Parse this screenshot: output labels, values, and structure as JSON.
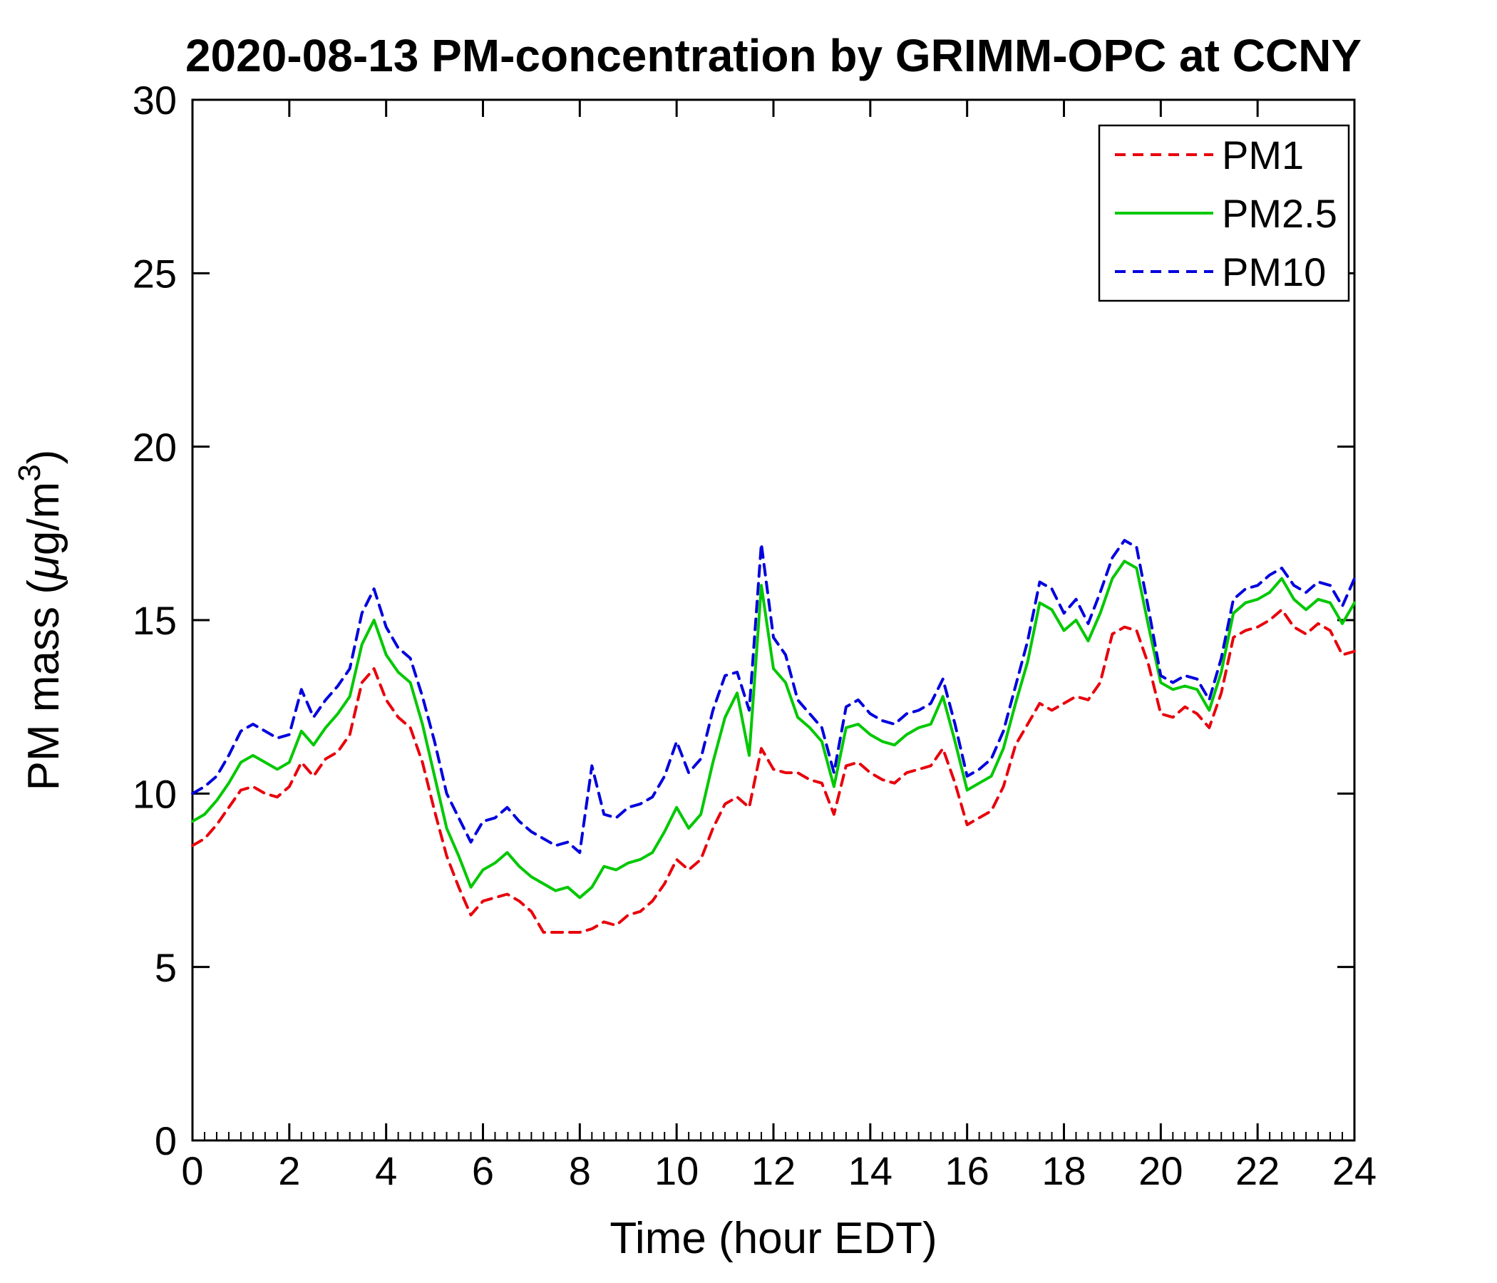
{
  "figure": {
    "background": "#ffffff",
    "axis_color": "#000000"
  },
  "chart_data": {
    "type": "line",
    "title": "2020-08-13 PM-concentration by GRIMM-OPC at CCNY",
    "xlabel": "Time (hour EDT)",
    "ylabel_parts": {
      "prefix": "PM mass (",
      "mu": "μ",
      "mid": "g/m",
      "sup": "3",
      "suffix": ")"
    },
    "xlim": [
      0,
      24
    ],
    "ylim": [
      0,
      30
    ],
    "x_ticks": [
      0,
      2,
      4,
      6,
      8,
      10,
      12,
      14,
      16,
      18,
      20,
      22,
      24
    ],
    "y_ticks": [
      0,
      5,
      10,
      15,
      20,
      25,
      30
    ],
    "x_minor_step": 0.25,
    "grid": false,
    "legend": {
      "position": "top-right",
      "entries": [
        {
          "label": "PM1",
          "color": "#e8000b",
          "dash": true
        },
        {
          "label": "PM2.5",
          "color": "#00c800",
          "dash": false
        },
        {
          "label": "PM10",
          "color": "#0000dd",
          "dash": true
        }
      ]
    },
    "x": [
      0,
      0.25,
      0.5,
      0.75,
      1,
      1.25,
      1.5,
      1.75,
      2,
      2.25,
      2.5,
      2.75,
      3,
      3.25,
      3.5,
      3.75,
      4,
      4.25,
      4.5,
      4.75,
      5,
      5.25,
      5.5,
      5.75,
      6,
      6.25,
      6.5,
      6.75,
      7,
      7.25,
      7.5,
      7.75,
      8,
      8.25,
      8.5,
      8.75,
      9,
      9.25,
      9.5,
      9.75,
      10,
      10.25,
      10.5,
      10.75,
      11,
      11.25,
      11.5,
      11.75,
      12,
      12.25,
      12.5,
      12.75,
      13,
      13.25,
      13.5,
      13.75,
      14,
      14.25,
      14.5,
      14.75,
      15,
      15.25,
      15.5,
      15.75,
      16,
      16.25,
      16.5,
      16.75,
      17,
      17.25,
      17.5,
      17.75,
      18,
      18.25,
      18.5,
      18.75,
      19,
      19.25,
      19.5,
      19.75,
      20,
      20.25,
      20.5,
      20.75,
      21,
      21.25,
      21.5,
      21.75,
      22,
      22.25,
      22.5,
      22.75,
      23,
      23.25,
      23.5,
      23.75,
      24
    ],
    "series": [
      {
        "name": "PM1",
        "values": [
          8.5,
          8.7,
          9.1,
          9.6,
          10.1,
          10.2,
          10.0,
          9.9,
          10.2,
          10.9,
          10.5,
          11.0,
          11.2,
          11.7,
          13.2,
          13.6,
          12.7,
          12.2,
          11.9,
          10.9,
          9.5,
          8.2,
          7.3,
          6.5,
          6.9,
          7.0,
          7.1,
          6.9,
          6.6,
          6.0,
          6.0,
          6.0,
          6.0,
          6.1,
          6.3,
          6.2,
          6.5,
          6.6,
          6.9,
          7.4,
          8.1,
          7.8,
          8.1,
          9.0,
          9.7,
          9.9,
          9.6,
          11.3,
          10.7,
          10.6,
          10.6,
          10.4,
          10.3,
          9.4,
          10.8,
          10.9,
          10.6,
          10.4,
          10.3,
          10.6,
          10.7,
          10.8,
          11.3,
          10.3,
          9.1,
          9.3,
          9.5,
          10.2,
          11.4,
          12.0,
          12.6,
          12.4,
          12.6,
          12.8,
          12.7,
          13.2,
          14.6,
          14.8,
          14.7,
          13.7,
          12.3,
          12.2,
          12.5,
          12.3,
          11.9,
          12.9,
          14.5,
          14.7,
          14.8,
          15.0,
          15.3,
          14.8,
          14.6,
          14.9,
          14.7,
          14.0,
          14.1
        ]
      },
      {
        "name": "PM2.5",
        "values": [
          9.2,
          9.4,
          9.8,
          10.3,
          10.9,
          11.1,
          10.9,
          10.7,
          10.9,
          11.8,
          11.4,
          11.9,
          12.3,
          12.8,
          14.3,
          15.0,
          14.0,
          13.5,
          13.2,
          12.0,
          10.5,
          9.0,
          8.2,
          7.3,
          7.8,
          8.0,
          8.3,
          7.9,
          7.6,
          7.4,
          7.2,
          7.3,
          7.0,
          7.3,
          7.9,
          7.8,
          8.0,
          8.1,
          8.3,
          8.9,
          9.6,
          9.0,
          9.4,
          10.9,
          12.2,
          12.9,
          11.1,
          16.0,
          13.6,
          13.2,
          12.2,
          11.9,
          11.5,
          10.2,
          11.9,
          12.0,
          11.7,
          11.5,
          11.4,
          11.7,
          11.9,
          12.0,
          12.8,
          11.5,
          10.1,
          10.3,
          10.5,
          11.3,
          12.6,
          13.8,
          15.5,
          15.3,
          14.7,
          15.0,
          14.4,
          15.2,
          16.2,
          16.7,
          16.5,
          14.8,
          13.2,
          13.0,
          13.1,
          13.0,
          12.4,
          13.5,
          15.2,
          15.5,
          15.6,
          15.8,
          16.2,
          15.6,
          15.3,
          15.6,
          15.5,
          14.9,
          15.5
        ]
      },
      {
        "name": "PM10",
        "values": [
          10.0,
          10.2,
          10.5,
          11.1,
          11.8,
          12.0,
          11.8,
          11.6,
          11.7,
          13.0,
          12.2,
          12.7,
          13.1,
          13.6,
          15.2,
          15.9,
          14.8,
          14.2,
          13.9,
          12.8,
          11.5,
          10.0,
          9.3,
          8.6,
          9.2,
          9.3,
          9.6,
          9.2,
          8.9,
          8.7,
          8.5,
          8.6,
          8.3,
          10.8,
          9.4,
          9.3,
          9.6,
          9.7,
          9.9,
          10.5,
          11.5,
          10.6,
          11.0,
          12.4,
          13.4,
          13.5,
          12.4,
          17.2,
          14.5,
          14.0,
          12.7,
          12.3,
          11.9,
          10.6,
          12.5,
          12.7,
          12.3,
          12.1,
          12.0,
          12.3,
          12.4,
          12.6,
          13.3,
          12.0,
          10.5,
          10.7,
          11.0,
          11.8,
          13.1,
          14.4,
          16.1,
          15.9,
          15.2,
          15.6,
          14.9,
          15.8,
          16.8,
          17.3,
          17.1,
          15.3,
          13.4,
          13.2,
          13.4,
          13.3,
          12.7,
          13.9,
          15.6,
          15.9,
          16.0,
          16.3,
          16.5,
          16.0,
          15.8,
          16.1,
          16.0,
          15.4,
          16.2
        ]
      }
    ]
  }
}
